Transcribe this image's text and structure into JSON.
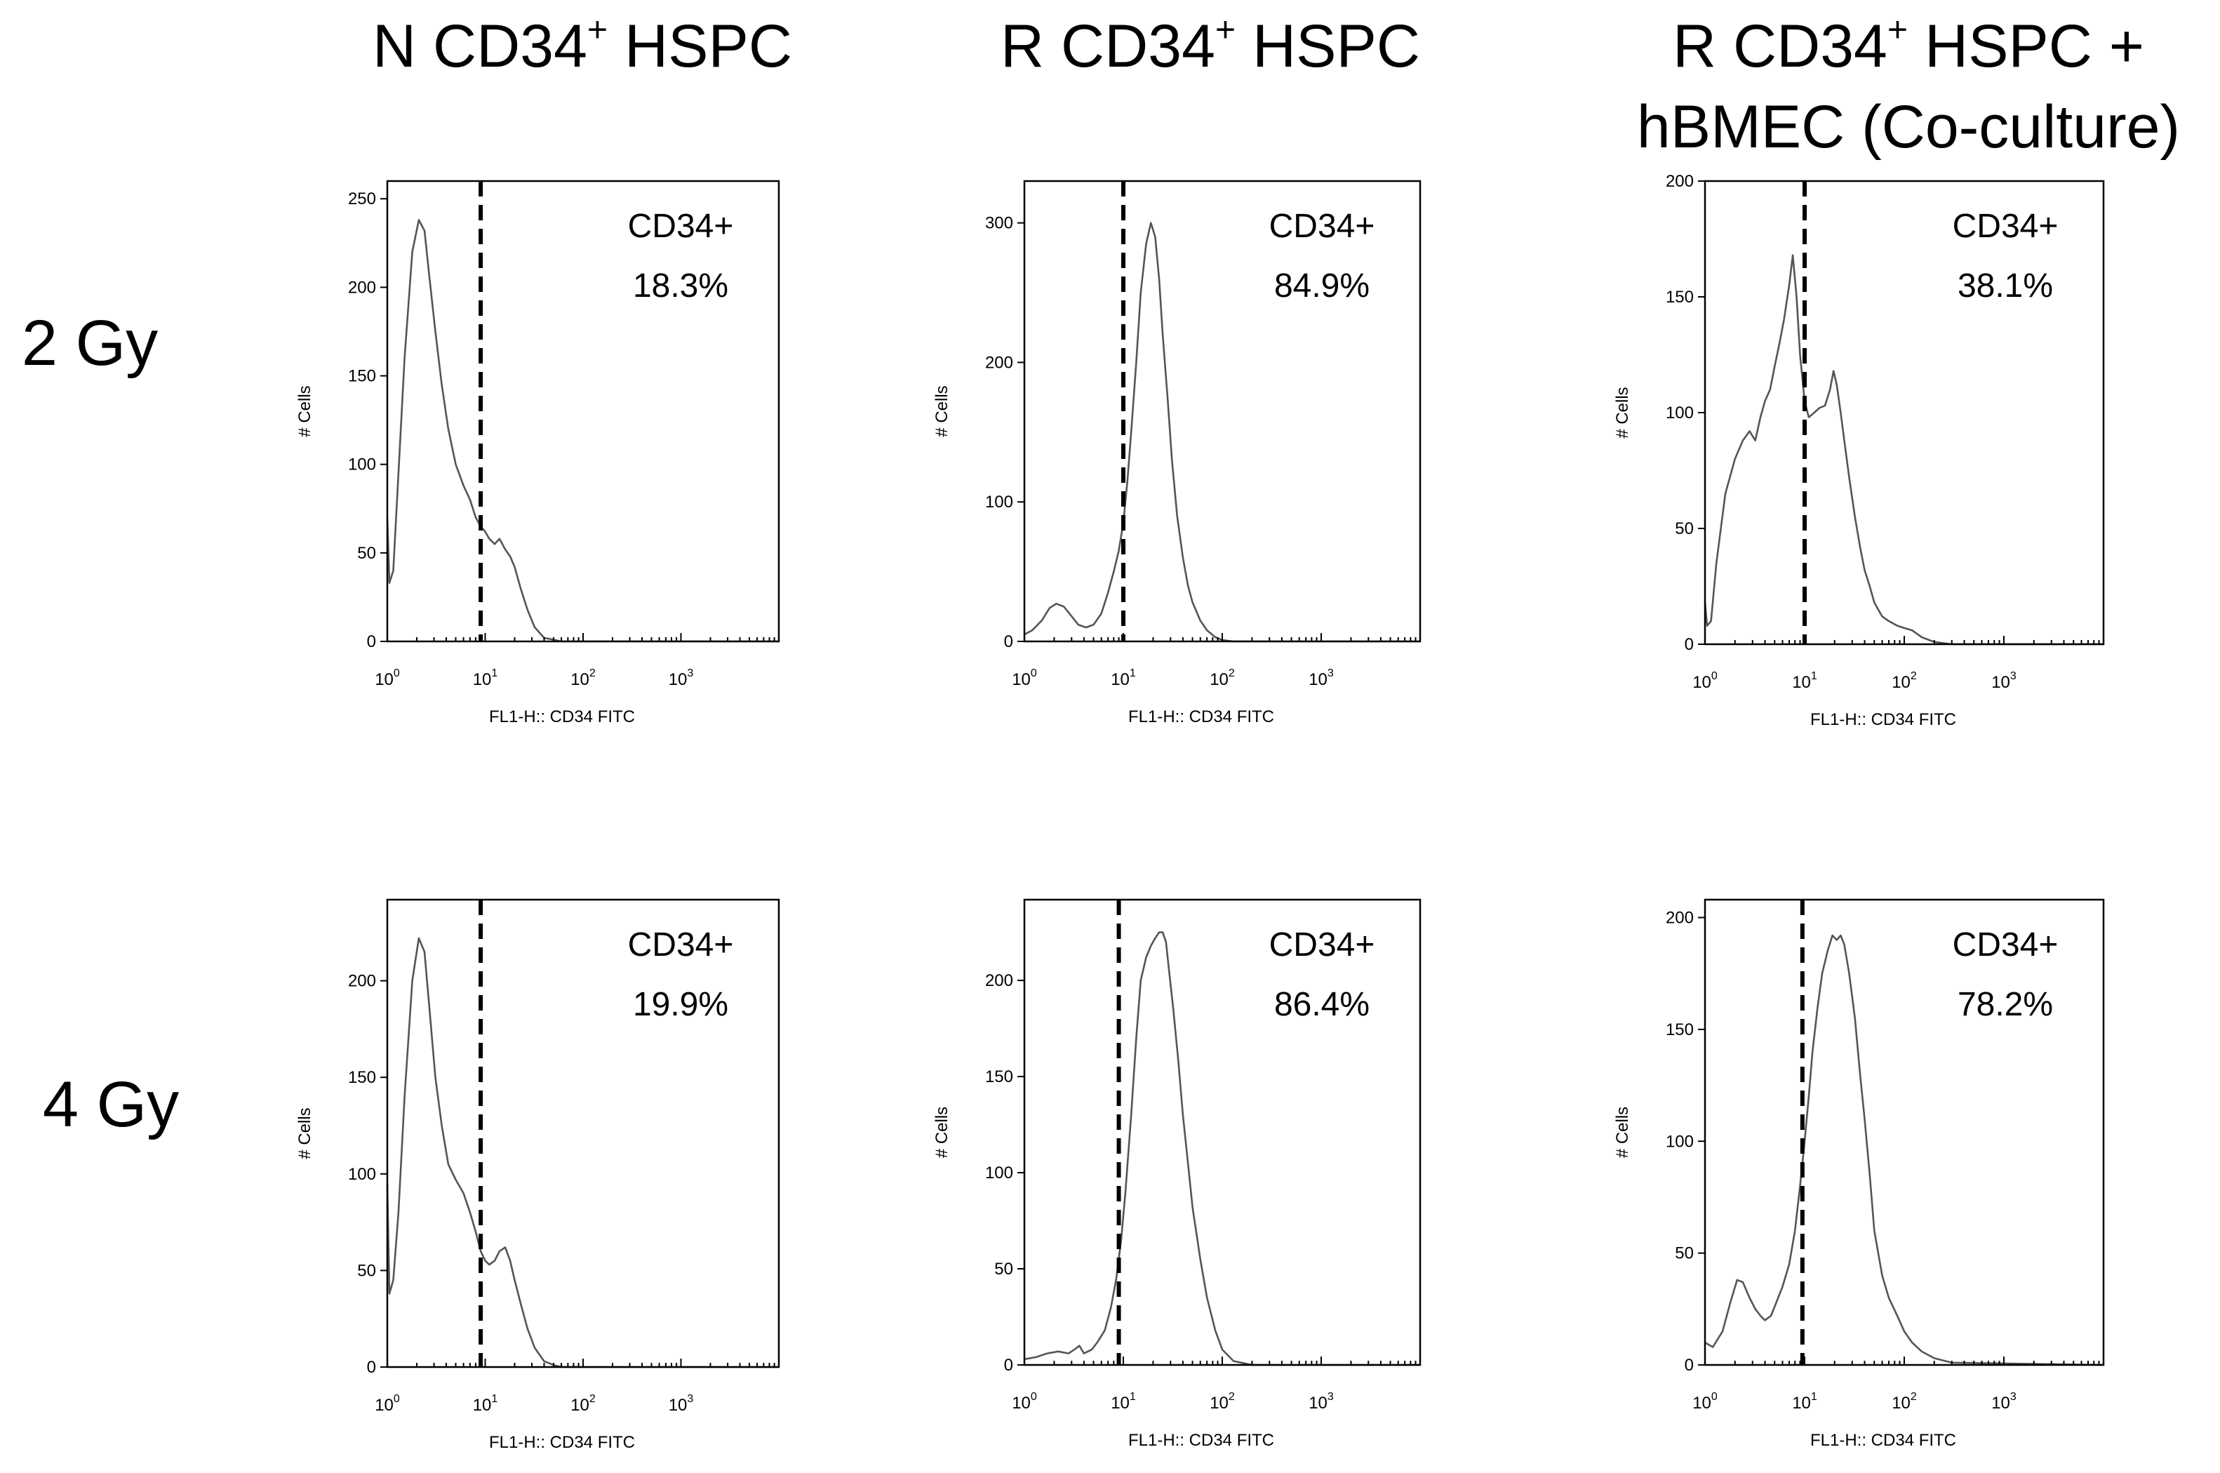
{
  "column_titles": [
    {
      "pre": "N CD34",
      "sup": "+",
      "post": " HSPC",
      "line2": ""
    },
    {
      "pre": "R CD34",
      "sup": "+",
      "post": " HSPC",
      "line2": ""
    },
    {
      "pre": "R CD34",
      "sup": "+",
      "post": " HSPC  +",
      "line2": "hBMEC (Co-culture)"
    }
  ],
  "row_labels": [
    "2 Gy",
    "4 Gy"
  ],
  "chart_data": [
    {
      "type": "line",
      "row": "2 Gy",
      "column": "N CD34+ HSPC",
      "ylabel": "# Cells",
      "xlabel": "FL1-H:: CD34 FITC",
      "yticks": [
        0,
        50,
        100,
        150,
        200,
        250
      ],
      "ylim": [
        0,
        260
      ],
      "xticks": [
        "10^0",
        "10^1",
        "10^2",
        "10^3"
      ],
      "xlim_log10": [
        0,
        4
      ],
      "gate_x": 9,
      "annotation": [
        "CD34+",
        "18.3%"
      ],
      "x": [
        1,
        1.05,
        1.15,
        1.3,
        1.5,
        1.8,
        2.1,
        2.4,
        2.7,
        3.1,
        3.6,
        4.2,
        5,
        6,
        7,
        8,
        9,
        10,
        11,
        12.5,
        14,
        16,
        18,
        20,
        23,
        27,
        32,
        40,
        50,
        60,
        80,
        120,
        200,
        500,
        1000,
        5000,
        10000
      ],
      "y": [
        70,
        33,
        40,
        95,
        160,
        220,
        238,
        232,
        205,
        175,
        145,
        120,
        100,
        88,
        80,
        70,
        65,
        62,
        58,
        55,
        58,
        52,
        48,
        42,
        30,
        18,
        8,
        2,
        1,
        0,
        0,
        0,
        0,
        0,
        0,
        0,
        0
      ]
    },
    {
      "type": "line",
      "row": "2 Gy",
      "column": "R CD34+ HSPC",
      "ylabel": "# Cells",
      "xlabel": "FL1-H:: CD34 FITC",
      "yticks": [
        0,
        100,
        200,
        300
      ],
      "ylim": [
        0,
        330
      ],
      "xticks": [
        "10^0",
        "10^1",
        "10^2",
        "10^3"
      ],
      "xlim_log10": [
        0,
        4
      ],
      "gate_x": 10,
      "annotation": [
        "CD34+",
        "84.9%"
      ],
      "x": [
        1,
        1.2,
        1.5,
        1.8,
        2.1,
        2.5,
        3,
        3.5,
        4.2,
        5,
        6,
        7,
        8,
        9,
        10,
        11,
        12,
        13.5,
        15,
        17,
        19,
        21,
        23,
        25,
        28,
        31,
        35,
        40,
        45,
        50,
        60,
        70,
        85,
        100,
        130,
        200,
        500,
        10000
      ],
      "y": [
        5,
        8,
        15,
        24,
        27,
        25,
        18,
        12,
        10,
        12,
        20,
        35,
        50,
        65,
        85,
        115,
        150,
        200,
        250,
        285,
        300,
        290,
        260,
        220,
        175,
        130,
        90,
        60,
        40,
        28,
        15,
        8,
        3,
        1,
        0,
        0,
        0,
        0
      ]
    },
    {
      "type": "line",
      "row": "2 Gy",
      "column": "R CD34+ HSPC + hBMEC (Co-culture)",
      "ylabel": "# Cells",
      "xlabel": "FL1-H:: CD34 FITC",
      "yticks": [
        0,
        50,
        100,
        150,
        200
      ],
      "ylim": [
        0,
        200
      ],
      "xticks": [
        "10^0",
        "10^1",
        "10^2",
        "10^3"
      ],
      "xlim_log10": [
        0,
        4
      ],
      "gate_x": 10,
      "annotation": [
        "CD34+",
        "38.1%"
      ],
      "x": [
        1,
        1.05,
        1.15,
        1.3,
        1.6,
        2,
        2.4,
        2.8,
        3.2,
        3.6,
        4,
        4.5,
        5,
        5.6,
        6.2,
        7,
        7.6,
        8.3,
        9,
        10,
        11,
        12.5,
        14,
        16,
        18,
        19.5,
        21,
        23,
        25,
        28,
        32,
        36,
        40,
        45,
        50,
        60,
        70,
        85,
        100,
        120,
        150,
        200,
        300,
        500,
        1000,
        10000
      ],
      "y": [
        18,
        8,
        10,
        35,
        65,
        80,
        88,
        92,
        88,
        98,
        105,
        110,
        120,
        130,
        140,
        155,
        168,
        150,
        125,
        105,
        98,
        100,
        102,
        103,
        110,
        118,
        112,
        100,
        88,
        72,
        55,
        42,
        32,
        25,
        18,
        12,
        10,
        8,
        7,
        6,
        3,
        1,
        0,
        0,
        0,
        0
      ]
    },
    {
      "type": "line",
      "row": "4 Gy",
      "column": "N CD34+ HSPC",
      "ylabel": "# Cells",
      "xlabel": "FL1-H:: CD34 FITC",
      "yticks": [
        0,
        50,
        100,
        150,
        200
      ],
      "ylim": [
        0,
        242
      ],
      "xticks": [
        "10^0",
        "10^1",
        "10^2",
        "10^3"
      ],
      "xlim_log10": [
        0,
        4
      ],
      "gate_x": 9,
      "annotation": [
        "CD34+",
        "19.9%"
      ],
      "x": [
        1,
        1.05,
        1.15,
        1.3,
        1.5,
        1.8,
        2.1,
        2.4,
        2.7,
        3.1,
        3.6,
        4.2,
        5,
        6,
        7,
        8,
        9,
        10,
        11,
        12.5,
        14,
        16,
        18,
        20,
        23,
        27,
        32,
        40,
        50,
        60,
        80,
        150,
        500,
        10000
      ],
      "y": [
        95,
        38,
        45,
        80,
        140,
        200,
        222,
        215,
        185,
        150,
        125,
        105,
        97,
        90,
        80,
        70,
        60,
        55,
        53,
        55,
        60,
        62,
        55,
        45,
        33,
        20,
        10,
        3,
        1,
        0,
        0,
        0,
        0,
        0
      ]
    },
    {
      "type": "line",
      "row": "4 Gy",
      "column": "R CD34+ HSPC",
      "ylabel": "# Cells",
      "xlabel": "FL1-H:: CD34 FITC",
      "yticks": [
        0,
        50,
        100,
        150,
        200
      ],
      "ylim": [
        0,
        242
      ],
      "xticks": [
        "10^0",
        "10^1",
        "10^2",
        "10^3"
      ],
      "xlim_log10": [
        0,
        4
      ],
      "gate_x": 9,
      "annotation": [
        "CD34+",
        "86.4%"
      ],
      "x": [
        1,
        1.3,
        1.7,
        2.2,
        2.8,
        3.2,
        3.6,
        4,
        4.8,
        5.5,
        6.5,
        7.5,
        8.5,
        9.5,
        10.5,
        12,
        13.5,
        15,
        17,
        19,
        21,
        23,
        25,
        27,
        29,
        32,
        36,
        40,
        45,
        50,
        60,
        70,
        85,
        100,
        130,
        200,
        500,
        10000
      ],
      "y": [
        3,
        4,
        6,
        7,
        6,
        8,
        10,
        6,
        8,
        12,
        18,
        30,
        45,
        65,
        90,
        130,
        170,
        200,
        212,
        218,
        222,
        225,
        225,
        220,
        205,
        185,
        158,
        130,
        105,
        82,
        55,
        35,
        18,
        8,
        2,
        0,
        0,
        0
      ]
    },
    {
      "type": "line",
      "row": "4 Gy",
      "column": "R CD34+ HSPC + hBMEC (Co-culture)",
      "ylabel": "# Cells",
      "xlabel": "FL1-H:: CD34 FITC",
      "yticks": [
        0,
        50,
        100,
        150,
        200
      ],
      "ylim": [
        0,
        208
      ],
      "xticks": [
        "10^0",
        "10^1",
        "10^2",
        "10^3"
      ],
      "xlim_log10": [
        0,
        4
      ],
      "gate_x": 9.5,
      "annotation": [
        "CD34+",
        "78.2%"
      ],
      "x": [
        1,
        1.2,
        1.5,
        1.8,
        2.1,
        2.4,
        2.8,
        3.2,
        3.6,
        4,
        4.6,
        5.2,
        6,
        7,
        8,
        9,
        10,
        11,
        12,
        13.5,
        15,
        17,
        19,
        21,
        23,
        25,
        28,
        32,
        36,
        40,
        45,
        50,
        60,
        70,
        85,
        100,
        120,
        150,
        200,
        300,
        10000
      ],
      "y": [
        10,
        8,
        15,
        28,
        38,
        37,
        30,
        25,
        22,
        20,
        22,
        28,
        35,
        45,
        60,
        80,
        100,
        120,
        140,
        160,
        175,
        185,
        192,
        190,
        192,
        188,
        175,
        155,
        130,
        110,
        85,
        60,
        40,
        30,
        22,
        15,
        10,
        6,
        3,
        1,
        0
      ]
    }
  ]
}
